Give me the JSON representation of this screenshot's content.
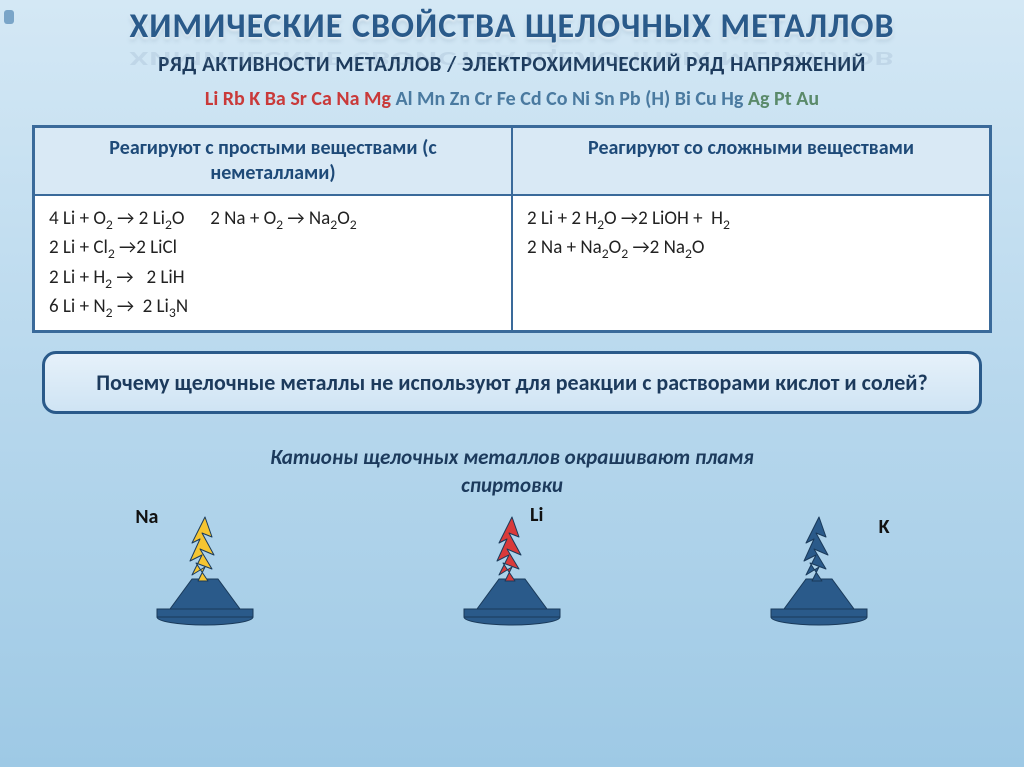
{
  "title": "ХИМИЧЕСКИЕ СВОЙСТВА ЩЕЛОЧНЫХ МЕТАЛЛОВ",
  "subtitle": "РЯД АКТИВНОСТИ МЕТАЛЛОВ / ЭЛЕКТРОХИМИЧЕСКИЙ РЯД НАПРЯЖЕНИЙ",
  "activity_series": {
    "g1": "Li Rb K Ba Sr Ca Na Mg",
    "g2": "Al Mn Zn Cr Fe Cd Co Ni Sn Pb (H)  Bi Cu Hg",
    "g3": "Ag Pt Au",
    "colors": {
      "g1": "#c93a3a",
      "g2": "#4a7aa0",
      "g3": "#5a8a6a"
    }
  },
  "table": {
    "header_left": "Реагируют с простыми веществами (с неметаллами)",
    "header_right": "Реагируют со сложными веществами",
    "left_equations_html": [
      "4 Li + O<sub>2</sub> → 2 Li<sub>2</sub>O&nbsp;&nbsp;&nbsp;&nbsp;&nbsp;&nbsp;2 Na + O<sub>2</sub> → Na<sub>2</sub>O<sub>2</sub>",
      "2 Li + Cl<sub>2</sub> →2 LiCl",
      "2 Li + H<sub>2</sub> →&nbsp;&nbsp; 2 LiH",
      "6 Li + N<sub>2</sub> →&nbsp; 2 Li<sub>3</sub>N"
    ],
    "right_equations_html": [
      "2 Li + 2 H<sub>2</sub>O →2 LiOH +&nbsp; H<sub>2</sub>",
      "2 Na + Na<sub>2</sub>O<sub>2</sub> →2 Na<sub>2</sub>O"
    ],
    "border_color": "#3a6a9a",
    "header_bg": "#d9e9f5"
  },
  "callout": "Почему  щелочные металлы не используют для реакции с растворами кислот и солей?",
  "italic_note_line1": "Катионы щелочных металлов окрашивают пламя",
  "italic_note_line2": "спиртовки",
  "flames": [
    {
      "label": "Na",
      "flame_color": "#f5c531",
      "burner_top": "#2a5a8a",
      "burner_base": "#2a5a8a"
    },
    {
      "label": "Li",
      "flame_color": "#d93a3a",
      "burner_top": "#2a5a8a",
      "burner_base": "#2a5a8a"
    },
    {
      "label": "K",
      "flame_color": "#2a5a8a",
      "burner_top": "#2a5a8a",
      "burner_base": "#2a5a8a"
    }
  ],
  "style": {
    "bg_top": "#d4e8f5",
    "bg_bottom": "#9ec9e5",
    "title_color": "#2a5a8a",
    "callout_border": "#2a5a8a",
    "font": "Calibri"
  }
}
